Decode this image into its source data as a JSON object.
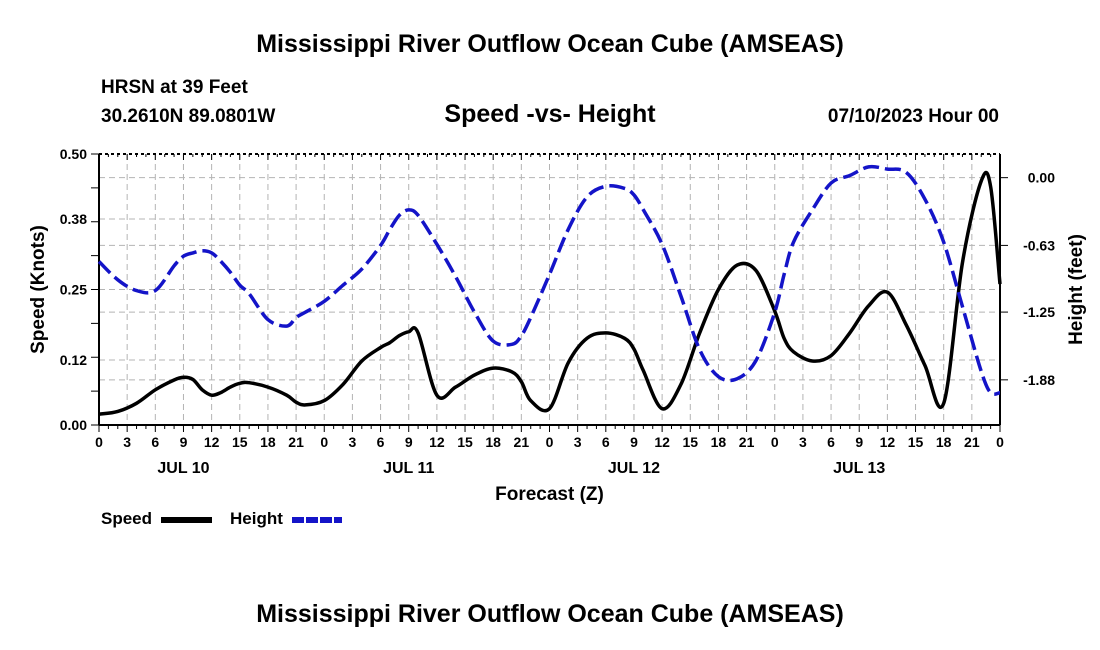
{
  "header": {
    "title": "Mississippi River Outflow Ocean Cube (AMSEAS)",
    "station": "HRSN at 39 Feet",
    "coords": "30.2610N  89.0801W",
    "chart_title": "Speed -vs- Height",
    "datetime": "07/10/2023 Hour 00"
  },
  "footer": {
    "title": "Mississippi River Outflow Ocean Cube (AMSEAS)"
  },
  "legend": {
    "speed": "Speed",
    "height": "Height"
  },
  "colors": {
    "speed": "#000000",
    "height": "#1414c8",
    "grid": "#b4b4b4"
  },
  "chart_data": {
    "type": "line",
    "title": "Speed -vs- Height",
    "xlabel": "Forecast (Z)",
    "ylabel": "Speed (Knots)",
    "y2label": "Height (feet)",
    "xlim": [
      0,
      96
    ],
    "ylim": [
      0,
      0.5
    ],
    "y2lim": [
      -2.3,
      0.22
    ],
    "yticks": [
      "0.00",
      "0.12",
      "0.25",
      "0.38",
      "0.50"
    ],
    "y2ticks": [
      "0.00",
      "-0.63",
      "-1.25",
      "-1.88"
    ],
    "xtick_labels": [
      "0",
      "3",
      "6",
      "9",
      "12",
      "15",
      "18",
      "21",
      "0",
      "3",
      "6",
      "9",
      "12",
      "15",
      "18",
      "21",
      "0",
      "3",
      "6",
      "9",
      "12",
      "15",
      "18",
      "21",
      "0",
      "3",
      "6",
      "9",
      "12",
      "15",
      "18",
      "21",
      "0"
    ],
    "day_labels": [
      {
        "hour": 9,
        "label": "JUL 10"
      },
      {
        "hour": 33,
        "label": "JUL 11"
      },
      {
        "hour": 57,
        "label": "JUL 12"
      },
      {
        "hour": 81,
        "label": "JUL 13"
      }
    ],
    "series": [
      {
        "name": "Speed",
        "axis": "left",
        "style": "solid",
        "x": [
          0,
          2,
          4,
          6,
          8,
          9,
          10,
          11,
          12,
          13,
          14,
          15,
          16,
          18,
          20,
          21,
          22,
          24,
          26,
          28,
          30,
          31,
          32,
          33,
          34,
          36,
          38,
          40,
          42,
          44,
          45,
          46,
          48,
          50,
          52,
          54,
          56,
          57,
          58,
          60,
          62,
          64,
          66,
          68,
          70,
          72,
          73,
          74,
          76,
          78,
          80,
          82,
          84,
          86,
          88,
          90,
          92,
          94,
          95,
          96
        ],
        "y": [
          0.02,
          0.025,
          0.04,
          0.065,
          0.083,
          0.088,
          0.084,
          0.065,
          0.055,
          0.06,
          0.07,
          0.077,
          0.078,
          0.07,
          0.055,
          0.042,
          0.037,
          0.045,
          0.075,
          0.118,
          0.143,
          0.152,
          0.165,
          0.172,
          0.17,
          0.055,
          0.07,
          0.092,
          0.105,
          0.098,
          0.08,
          0.045,
          0.03,
          0.115,
          0.16,
          0.17,
          0.16,
          0.14,
          0.1,
          0.03,
          0.075,
          0.17,
          0.25,
          0.295,
          0.285,
          0.21,
          0.16,
          0.135,
          0.118,
          0.128,
          0.17,
          0.22,
          0.245,
          0.185,
          0.11,
          0.04,
          0.3,
          0.45,
          0.44,
          0.26
        ]
      },
      {
        "name": "Height",
        "axis": "right",
        "style": "dashed",
        "x": [
          0,
          2,
          4,
          6,
          8,
          9,
          10,
          11,
          12,
          13,
          14,
          15,
          16,
          18,
          20,
          21,
          22,
          24,
          26,
          28,
          30,
          31,
          32,
          33,
          34,
          36,
          38,
          40,
          42,
          44,
          45,
          46,
          48,
          50,
          52,
          54,
          56,
          57,
          58,
          60,
          62,
          64,
          66,
          68,
          70,
          72,
          73,
          74,
          76,
          78,
          80,
          82,
          84,
          86,
          88,
          90,
          92,
          94,
          95,
          96
        ],
        "y": [
          -0.78,
          -0.95,
          -1.05,
          -1.05,
          -0.82,
          -0.73,
          -0.7,
          -0.68,
          -0.7,
          -0.78,
          -0.88,
          -1.0,
          -1.08,
          -1.32,
          -1.38,
          -1.3,
          -1.25,
          -1.15,
          -1.0,
          -0.85,
          -0.63,
          -0.48,
          -0.35,
          -0.3,
          -0.35,
          -0.62,
          -0.92,
          -1.25,
          -1.52,
          -1.55,
          -1.47,
          -1.3,
          -0.9,
          -0.48,
          -0.18,
          -0.08,
          -0.1,
          -0.16,
          -0.3,
          -0.62,
          -1.1,
          -1.6,
          -1.85,
          -1.87,
          -1.7,
          -1.25,
          -0.9,
          -0.6,
          -0.3,
          -0.05,
          0.02,
          0.1,
          0.08,
          0.05,
          -0.2,
          -0.6,
          -1.2,
          -1.8,
          -2.0,
          -2.0
        ]
      }
    ]
  }
}
